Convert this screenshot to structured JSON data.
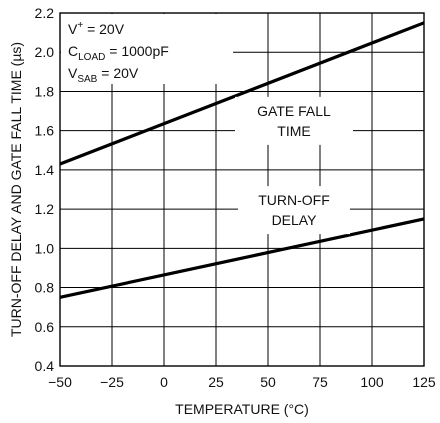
{
  "chart_data": {
    "type": "line",
    "xlabel": "TEMPERATURE (°C)",
    "ylabel": "TURN-OFF DELAY AND GATE FALL TIME (µs)",
    "xlim": [
      -50,
      125
    ],
    "ylim": [
      0.4,
      2.2
    ],
    "x_ticks": [
      -50,
      -25,
      0,
      25,
      50,
      75,
      100,
      125
    ],
    "x_tick_labels": [
      "−50",
      "−25",
      "0",
      "25",
      "50",
      "75",
      "100",
      "125"
    ],
    "y_ticks": [
      0.4,
      0.6,
      0.8,
      1.0,
      1.2,
      1.4,
      1.6,
      1.8,
      2.0,
      2.2
    ],
    "y_tick_labels": [
      "0.4",
      "0.6",
      "0.8",
      "1.0",
      "1.2",
      "1.4",
      "1.6",
      "1.8",
      "2.0",
      "2.2"
    ],
    "grid": true,
    "conditions": [
      {
        "main": "V",
        "sup": "+",
        "sub": "",
        "rest": " = 20V"
      },
      {
        "main": "C",
        "sup": "",
        "sub": "LOAD",
        "rest": " = 1000pF"
      },
      {
        "main": "V",
        "sup": "",
        "sub": "SAB",
        "rest": " = 20V"
      }
    ],
    "series": [
      {
        "label_lines": [
          "GATE FALL",
          "TIME"
        ],
        "x": [
          -50,
          125
        ],
        "y": [
          1.43,
          2.15
        ]
      },
      {
        "label_lines": [
          "TURN-OFF",
          "DELAY"
        ],
        "x": [
          -50,
          125
        ],
        "y": [
          0.75,
          1.15
        ]
      }
    ]
  }
}
